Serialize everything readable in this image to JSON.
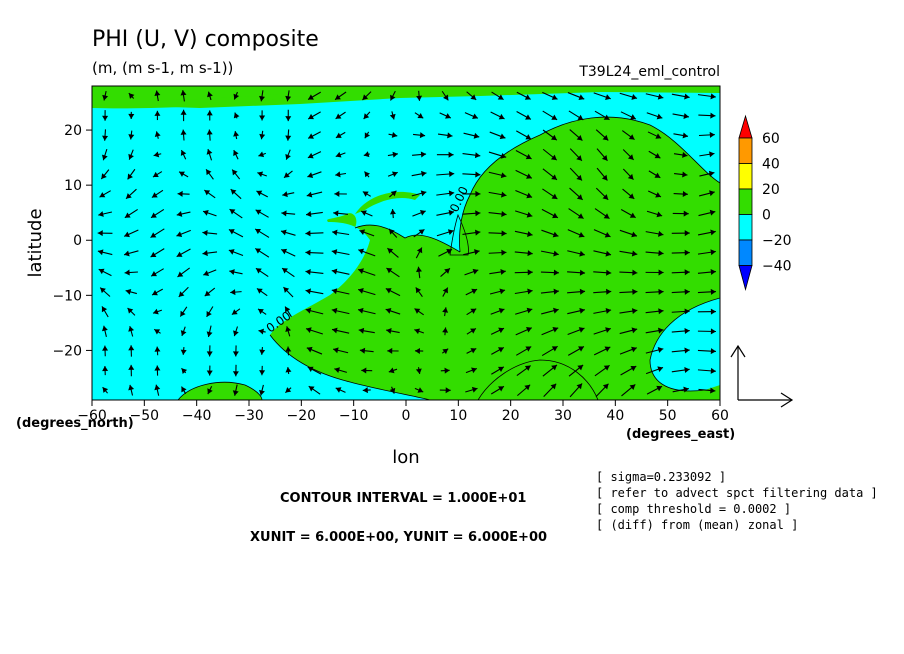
{
  "chart_data": {
    "type": "heatmap",
    "title": "PHI (U, V) composite",
    "subtitle": "(m, (m s-1, m s-1))",
    "run_label": "T39L24_eml_control",
    "xlabel": "lon",
    "ylabel": "latitude",
    "x_units_label": "(degrees_east)",
    "y_units_label": "(degrees_north)",
    "xlim": [
      -60,
      60
    ],
    "ylim": [
      -29,
      28
    ],
    "x_ticks": [
      -60,
      -50,
      -40,
      -30,
      -20,
      -10,
      0,
      10,
      20,
      30,
      40,
      50,
      60
    ],
    "y_ticks": [
      -20,
      -10,
      0,
      10,
      20
    ],
    "contour_label": "0.00",
    "colorbar": {
      "levels": [
        60,
        40,
        20,
        0,
        -20,
        -40
      ],
      "colors": [
        "#ff0000",
        "#ff9900",
        "#ffff00",
        "#33dd00",
        "#00ffff",
        "#0088ff",
        "#0000ff"
      ]
    },
    "contour_interval": "CONTOUR INTERVAL = 1.000E+01",
    "vector_units": "XUNIT = 6.000E+00, YUNIT = 6.000E+00",
    "notes": [
      "[ sigma=0.233092 ]",
      "[ refer to advect spct filtering data ]",
      "[ comp threshold = 0.0002 ]",
      "[ (diff) from (mean) zonal ]"
    ],
    "vector_scale": {
      "u": 6,
      "v": 6
    }
  },
  "colors": {
    "positive": "#33dd00",
    "negative": "#00ffff",
    "vector": "#000000"
  }
}
